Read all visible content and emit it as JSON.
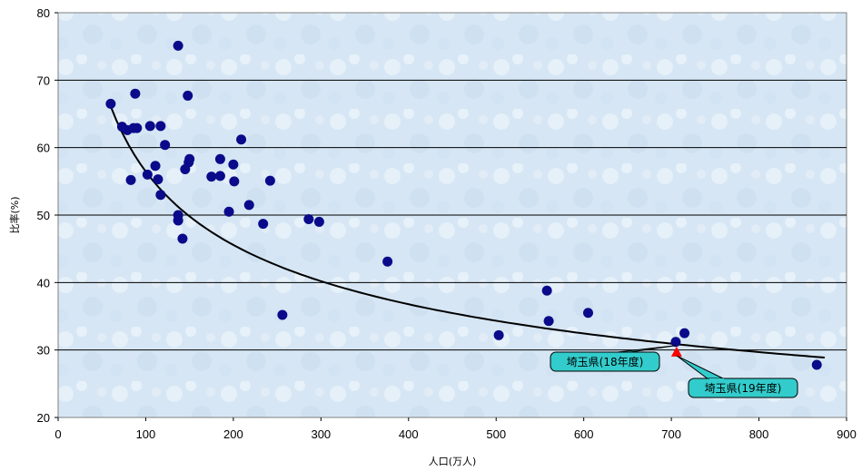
{
  "chart_data": {
    "type": "scatter",
    "xlabel": "人口(万人)",
    "ylabel": "比率(%)",
    "xlim": [
      0,
      900
    ],
    "ylim": [
      20,
      80
    ],
    "x_ticks": [
      0,
      100,
      200,
      300,
      400,
      500,
      600,
      700,
      800,
      900
    ],
    "y_ticks": [
      20,
      30,
      40,
      50,
      60,
      70,
      80
    ],
    "grid": "horizontal",
    "legend": "none",
    "colors": {
      "point": "#0a0a8a",
      "highlight": "#ff0000",
      "trendline": "#000000",
      "callout_fill": "#33cccc",
      "plot_background": "#d9e8f5"
    },
    "series": [
      {
        "points": [
          [
            60,
            66.5
          ],
          [
            73,
            63.1
          ],
          [
            79,
            62.6
          ],
          [
            83,
            55.2
          ],
          [
            86,
            62.9
          ],
          [
            88,
            68.0
          ],
          [
            90,
            62.9
          ],
          [
            102,
            56.0
          ],
          [
            105,
            63.2
          ],
          [
            111,
            57.3
          ],
          [
            114,
            55.3
          ],
          [
            117,
            63.2
          ],
          [
            117,
            53.0
          ],
          [
            122,
            60.4
          ],
          [
            137,
            75.1
          ],
          [
            137,
            50.0
          ],
          [
            137,
            49.2
          ],
          [
            142,
            46.5
          ],
          [
            145,
            56.8
          ],
          [
            148,
            67.7
          ],
          [
            149,
            57.8
          ],
          [
            150,
            58.3
          ],
          [
            175,
            55.7
          ],
          [
            185,
            58.3
          ],
          [
            185,
            55.8
          ],
          [
            195,
            50.5
          ],
          [
            200,
            57.5
          ],
          [
            201,
            55.0
          ],
          [
            209,
            61.2
          ],
          [
            218,
            51.5
          ],
          [
            234,
            48.7
          ],
          [
            242,
            55.1
          ],
          [
            256,
            35.2
          ],
          [
            286,
            49.4
          ],
          [
            298,
            49.0
          ],
          [
            376,
            43.1
          ],
          [
            503,
            32.2
          ],
          [
            558,
            38.8
          ],
          [
            560,
            34.3
          ],
          [
            605,
            35.5
          ],
          [
            705,
            31.2
          ],
          [
            715,
            32.5
          ],
          [
            866,
            27.8
          ]
        ]
      },
      {
        "marker": "triangle",
        "points": [
          [
            706,
            29.7
          ]
        ]
      }
    ],
    "trendline": {
      "type": "power",
      "coefficient": 234.4,
      "exponent": -0.3091,
      "x_range": [
        60,
        875
      ]
    },
    "annotations": [
      {
        "text": "埼玉県(18年度)",
        "target": [
          705,
          31.2
        ]
      },
      {
        "text": "埼玉県(19年度)",
        "target": [
          706,
          29.7
        ]
      }
    ]
  }
}
